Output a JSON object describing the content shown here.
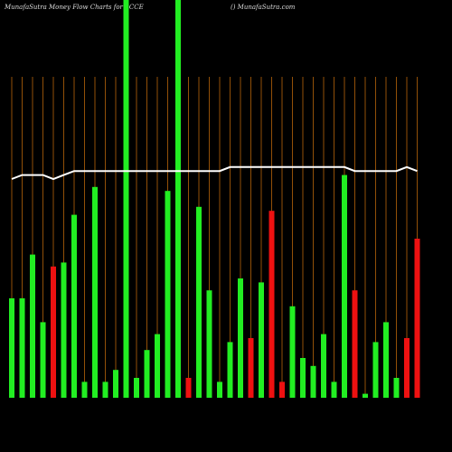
{
  "chart_data": {
    "type": "bar",
    "title": "MunafaSutra  Money Flow  Charts for SCCE",
    "subtitle": "() MunafaSutra.com",
    "categories": [
      null,
      null,
      null,
      null,
      null,
      null,
      null,
      null,
      null,
      null,
      null,
      null,
      null,
      null,
      null,
      null,
      null,
      null,
      null,
      null,
      null,
      null,
      null,
      null,
      null,
      null,
      null,
      null,
      null,
      null,
      null,
      null,
      null,
      null,
      null,
      null,
      null,
      null,
      null,
      null
    ],
    "ylim": [
      0,
      100
    ],
    "grid": true,
    "grid_color": "#b8650a",
    "series": [
      {
        "values": [
          25,
          25,
          36,
          19,
          33,
          34,
          46,
          4,
          53,
          4,
          7,
          100,
          5,
          12,
          16,
          52,
          100,
          5,
          48,
          27,
          4,
          14,
          30,
          15,
          29,
          47,
          4,
          23,
          10,
          8,
          16,
          4,
          56,
          27,
          1,
          14,
          19,
          5,
          15,
          40
        ],
        "colors": [
          "#22ee22",
          "#22ee22",
          "#22ee22",
          "#22ee22",
          "#ee1111",
          "#22ee22",
          "#22ee22",
          "#22ee22",
          "#22ee22",
          "#22ee22",
          "#22ee22",
          "#22ee22",
          "#22ee22",
          "#22ee22",
          "#22ee22",
          "#22ee22",
          "#22ee22",
          "#ee1111",
          "#22ee22",
          "#22ee22",
          "#22ee22",
          "#22ee22",
          "#22ee22",
          "#ee1111",
          "#22ee22",
          "#ee1111",
          "#ee1111",
          "#22ee22",
          "#22ee22",
          "#22ee22",
          "#22ee22",
          "#22ee22",
          "#22ee22",
          "#ee1111",
          "#22ee22",
          "#22ee22",
          "#22ee22",
          "#22ee22",
          "#ee1111",
          "#ee1111"
        ]
      },
      {
        "type": "line",
        "color": "#ffffff",
        "values": [
          55,
          56,
          56,
          56,
          55,
          56,
          57,
          57,
          57,
          57,
          57,
          57,
          57,
          57,
          57,
          57,
          57,
          57,
          57,
          57,
          57,
          58,
          58,
          58,
          58,
          58,
          58,
          58,
          58,
          58,
          58,
          58,
          58,
          57,
          57,
          57,
          57,
          57,
          58,
          57
        ]
      }
    ]
  }
}
